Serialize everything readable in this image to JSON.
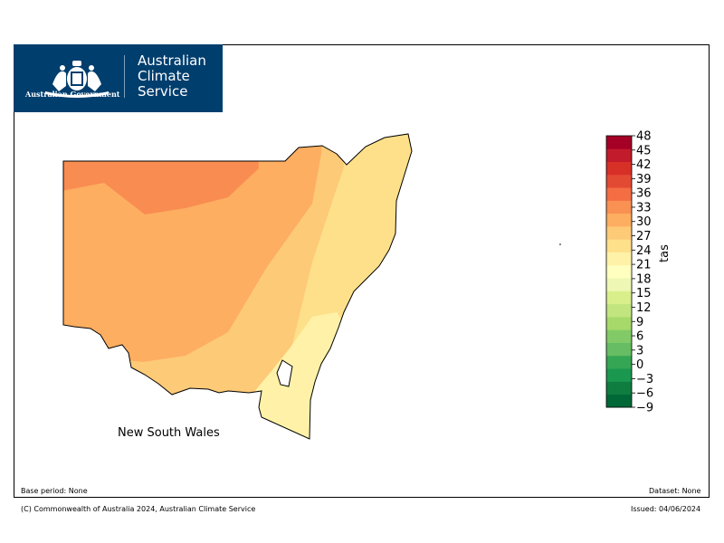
{
  "header": {
    "government_text": "Australian Government",
    "service_lines": [
      "Australian",
      "Climate",
      "Service"
    ],
    "colors": {
      "banner_bg": "#003e6e",
      "banner_text": "#ffffff"
    },
    "crest_icon": "coat-of-arms-icon"
  },
  "map": {
    "region_label": "New South Wales",
    "outline_color": "#000000"
  },
  "colorbar": {
    "label": "tas",
    "min": -9,
    "max": 48,
    "step": 3,
    "tick_labels": [
      "48",
      "45",
      "42",
      "39",
      "36",
      "33",
      "30",
      "27",
      "24",
      "21",
      "18",
      "15",
      "12",
      "9",
      "6",
      "3",
      "0",
      "−3",
      "−6",
      "−9"
    ],
    "colors": [
      "#006837",
      "#0f7d3f",
      "#1a9850",
      "#35a654",
      "#66bd63",
      "#82ca67",
      "#a6d96a",
      "#c2e57f",
      "#d9ef8b",
      "#eef7b4",
      "#ffffbf",
      "#fff2a8",
      "#fee08b",
      "#fdca78",
      "#fdae61",
      "#f99153",
      "#f46d43",
      "#e34a33",
      "#d73027",
      "#c21b2b",
      "#a50026"
    ]
  },
  "footer": {
    "base_period": "Base period: None",
    "dataset": "Dataset: None",
    "copyright": "(C) Commonwealth of Australia 2024, Australian Climate Service",
    "issued": "Issued: 04/06/2024"
  }
}
